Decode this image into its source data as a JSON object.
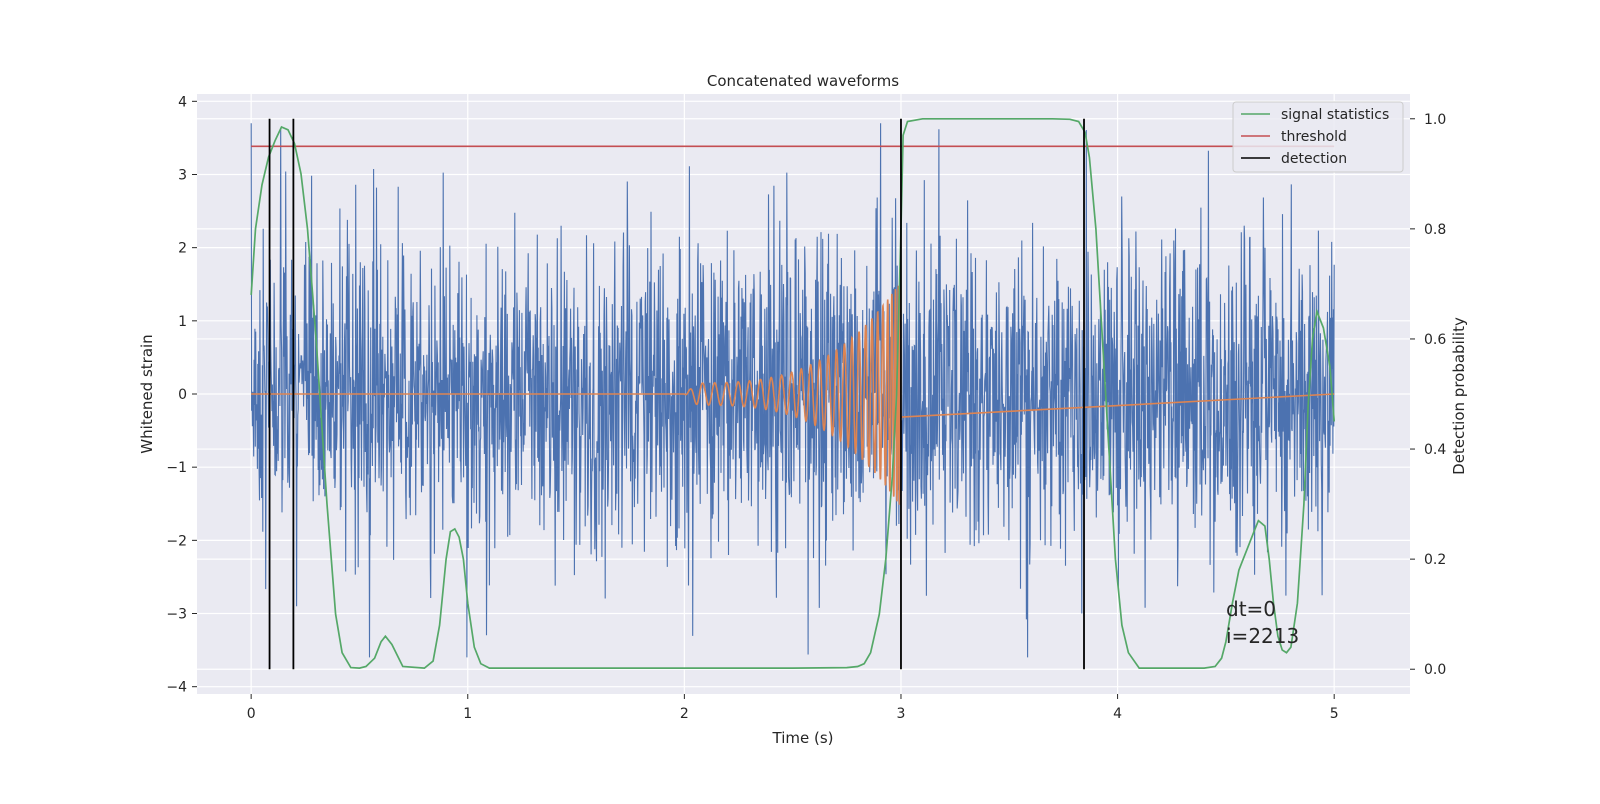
{
  "chart_data": {
    "type": "line",
    "title": "Concatenated waveforms",
    "xlabel": "Time (s)",
    "ylabel": "Whitened strain",
    "y2label": "Detection probability",
    "xlim": [
      -0.25,
      5.35
    ],
    "ylim": [
      -4.1,
      4.1
    ],
    "y2lim": [
      -0.045,
      1.045
    ],
    "x_ticks": [
      "0",
      "1",
      "2",
      "3",
      "4",
      "5"
    ],
    "y_ticks": [
      "−4",
      "−3",
      "−2",
      "−1",
      "0",
      "1",
      "2",
      "3",
      "4"
    ],
    "y2_ticks": [
      "0.0",
      "0.2",
      "0.4",
      "0.6",
      "0.8",
      "1.0"
    ],
    "grid": true,
    "legend_position": "top-right",
    "colors": {
      "noise": "#4c72b0",
      "template": "#dd8452",
      "signal_statistics": "#55a868",
      "threshold": "#c44e52",
      "detection": "#000000",
      "axes_bg": "#eaeaf2",
      "grid": "#ffffff"
    },
    "series": [
      {
        "name": "signal statistics",
        "axis": "right",
        "x": [
          0.0,
          0.02,
          0.05,
          0.08,
          0.11,
          0.14,
          0.17,
          0.2,
          0.23,
          0.26,
          0.3,
          0.35,
          0.39,
          0.42,
          0.46,
          0.5,
          0.53,
          0.57,
          0.6,
          0.62,
          0.65,
          0.7,
          0.8,
          0.84,
          0.87,
          0.9,
          0.92,
          0.94,
          0.96,
          0.98,
          1.0,
          1.03,
          1.06,
          1.1,
          1.5,
          2.0,
          2.5,
          2.75,
          2.8,
          2.83,
          2.86,
          2.9,
          2.93,
          2.96,
          2.98,
          3.0,
          3.01,
          3.03,
          3.1,
          3.5,
          3.7,
          3.78,
          3.82,
          3.85,
          3.87,
          3.9,
          3.93,
          3.96,
          3.99,
          4.02,
          4.05,
          4.1,
          4.4,
          4.45,
          4.48,
          4.5,
          4.53,
          4.56,
          4.58,
          4.61,
          4.63,
          4.65,
          4.68,
          4.7,
          4.72,
          4.74,
          4.76,
          4.78,
          4.8,
          4.83,
          4.86,
          4.88,
          4.9,
          4.92,
          4.95,
          4.98,
          5.0
        ],
        "values": [
          0.68,
          0.8,
          0.88,
          0.93,
          0.96,
          0.985,
          0.98,
          0.955,
          0.9,
          0.8,
          0.6,
          0.3,
          0.1,
          0.03,
          0.003,
          0.002,
          0.005,
          0.02,
          0.05,
          0.06,
          0.045,
          0.005,
          0.002,
          0.015,
          0.08,
          0.2,
          0.25,
          0.255,
          0.24,
          0.2,
          0.12,
          0.04,
          0.01,
          0.002,
          0.002,
          0.002,
          0.002,
          0.003,
          0.005,
          0.01,
          0.03,
          0.1,
          0.2,
          0.35,
          0.5,
          0.8,
          0.97,
          0.995,
          1.0,
          1.0,
          1.0,
          0.999,
          0.995,
          0.975,
          0.93,
          0.8,
          0.6,
          0.4,
          0.2,
          0.08,
          0.03,
          0.002,
          0.002,
          0.005,
          0.02,
          0.05,
          0.12,
          0.18,
          0.2,
          0.23,
          0.25,
          0.27,
          0.26,
          0.2,
          0.12,
          0.06,
          0.035,
          0.03,
          0.04,
          0.12,
          0.3,
          0.48,
          0.6,
          0.65,
          0.62,
          0.55,
          0.45
        ]
      },
      {
        "name": "threshold",
        "axis": "right",
        "value": 0.95,
        "x_range": [
          0.0,
          5.0
        ]
      },
      {
        "name": "detection",
        "axis": "right",
        "x": [
          0.085,
          0.195,
          3.0,
          3.845
        ],
        "y_range": [
          0.0,
          1.0
        ]
      },
      {
        "name": "",
        "axis": "left",
        "kind": "whitened noise",
        "x_range": [
          0.0,
          5.0
        ],
        "approx_range": [
          -3.6,
          3.7
        ]
      },
      {
        "name": "",
        "axis": "left",
        "kind": "chirp template",
        "x_range": [
          2.0,
          3.0
        ],
        "amplitude_start": 0.15,
        "amplitude_end": 1.55
      }
    ],
    "legend": [
      "signal statistics",
      "threshold",
      "detection"
    ],
    "annotations": [
      "dt=0",
      "i=2213"
    ]
  }
}
